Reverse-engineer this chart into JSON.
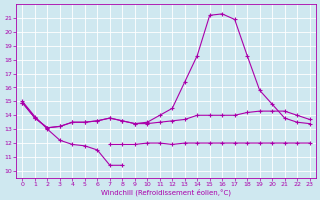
{
  "xlabel": "Windchill (Refroidissement éolien,°C)",
  "bg_color": "#cfe8f0",
  "grid_color": "#ffffff",
  "line_color": "#aa00aa",
  "xlim": [
    -0.5,
    23.5
  ],
  "ylim": [
    9.5,
    22.0
  ],
  "xticks": [
    0,
    1,
    2,
    3,
    4,
    5,
    6,
    7,
    8,
    9,
    10,
    11,
    12,
    13,
    14,
    15,
    16,
    17,
    18,
    19,
    20,
    21,
    22,
    23
  ],
  "yticks": [
    10,
    11,
    12,
    13,
    14,
    15,
    16,
    17,
    18,
    19,
    20,
    21
  ],
  "series": [
    {
      "x": [
        0,
        1,
        2,
        3,
        4,
        5,
        6,
        7,
        8
      ],
      "y": [
        15.0,
        13.9,
        13.0,
        12.2,
        11.9,
        11.8,
        11.5,
        10.4,
        10.4
      ]
    },
    {
      "x": [
        7,
        8,
        9,
        10,
        11,
        12,
        13,
        14,
        15,
        16,
        17,
        18,
        19,
        20,
        21,
        22,
        23
      ],
      "y": [
        11.9,
        11.9,
        11.9,
        12.0,
        12.0,
        11.9,
        12.0,
        12.0,
        12.0,
        12.0,
        12.0,
        12.0,
        12.0,
        12.0,
        12.0,
        12.0,
        12.0
      ]
    },
    {
      "x": [
        0,
        1,
        2,
        3,
        4,
        5,
        6,
        7,
        8,
        9,
        10,
        11,
        12,
        13,
        14,
        15,
        16,
        17,
        18,
        19,
        20,
        21,
        22,
        23
      ],
      "y": [
        14.9,
        13.8,
        13.1,
        13.2,
        13.5,
        13.5,
        13.6,
        13.8,
        13.6,
        13.4,
        13.4,
        13.5,
        13.6,
        13.7,
        14.0,
        14.0,
        14.0,
        14.0,
        14.2,
        14.3,
        14.3,
        14.3,
        14.0,
        13.7
      ]
    },
    {
      "x": [
        0,
        1,
        2,
        3,
        4,
        5,
        6,
        7,
        8,
        9,
        10,
        11,
        12,
        13,
        14,
        15,
        16,
        17,
        18,
        19,
        20,
        21,
        22,
        23
      ],
      "y": [
        14.9,
        13.8,
        13.1,
        13.2,
        13.5,
        13.5,
        13.6,
        13.8,
        13.6,
        13.4,
        13.5,
        14.0,
        14.5,
        16.4,
        18.3,
        21.2,
        21.3,
        20.9,
        18.3,
        15.8,
        14.8,
        13.8,
        13.5,
        13.4
      ]
    }
  ]
}
